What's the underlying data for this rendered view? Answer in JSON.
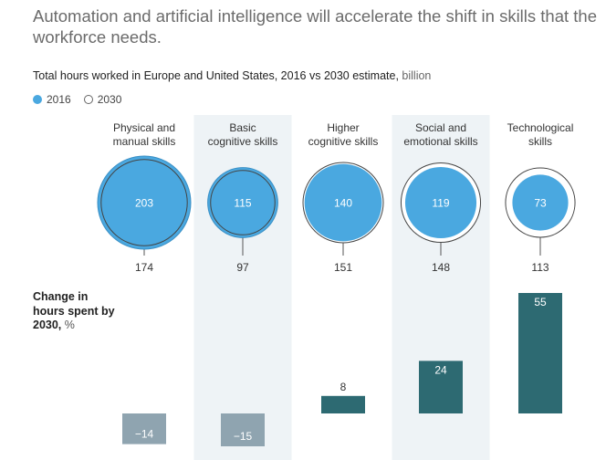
{
  "headline": "Automation and artificial intelligence will accelerate the shift in skills that the workforce needs.",
  "subtitle": {
    "main": "Total hours worked in Europe and United States, 2016 vs 2030 estimate,",
    "unit": " billion"
  },
  "legend": {
    "label_2016": "2016",
    "label_2030": "2030"
  },
  "change_label": {
    "main": "Change in hours spent by 2030,",
    "unit": " %"
  },
  "colors": {
    "fill_2016": "#4aa8e0",
    "fill_2016_dark": "#3a8fc4",
    "outline_2030": "#444444",
    "bar_positive": "#2d6a72",
    "bar_negative": "#8fa4b0",
    "band": "#eef3f6"
  },
  "chart_data": {
    "type": "bubble-and-bar",
    "categories": [
      "Physical and manual skills",
      "Basic cognitive skills",
      "Higher cognitive skills",
      "Social and emotional skills",
      "Technological skills"
    ],
    "category_lines": [
      [
        "Physical and",
        "manual skills"
      ],
      [
        "Basic",
        "cognitive skills"
      ],
      [
        "Higher",
        "cognitive skills"
      ],
      [
        "Social and",
        "emotional skills"
      ],
      [
        "Technological",
        "skills"
      ]
    ],
    "series": [
      {
        "name": "2016",
        "unit": "billion hours",
        "values": [
          203,
          115,
          140,
          119,
          73
        ]
      },
      {
        "name": "2030",
        "unit": "billion hours",
        "values": [
          174,
          97,
          151,
          148,
          113
        ]
      }
    ],
    "change_percent": [
      -14,
      -15,
      8,
      24,
      55
    ],
    "change_labels": [
      "−14",
      "−15",
      "8",
      "24",
      "55"
    ]
  }
}
